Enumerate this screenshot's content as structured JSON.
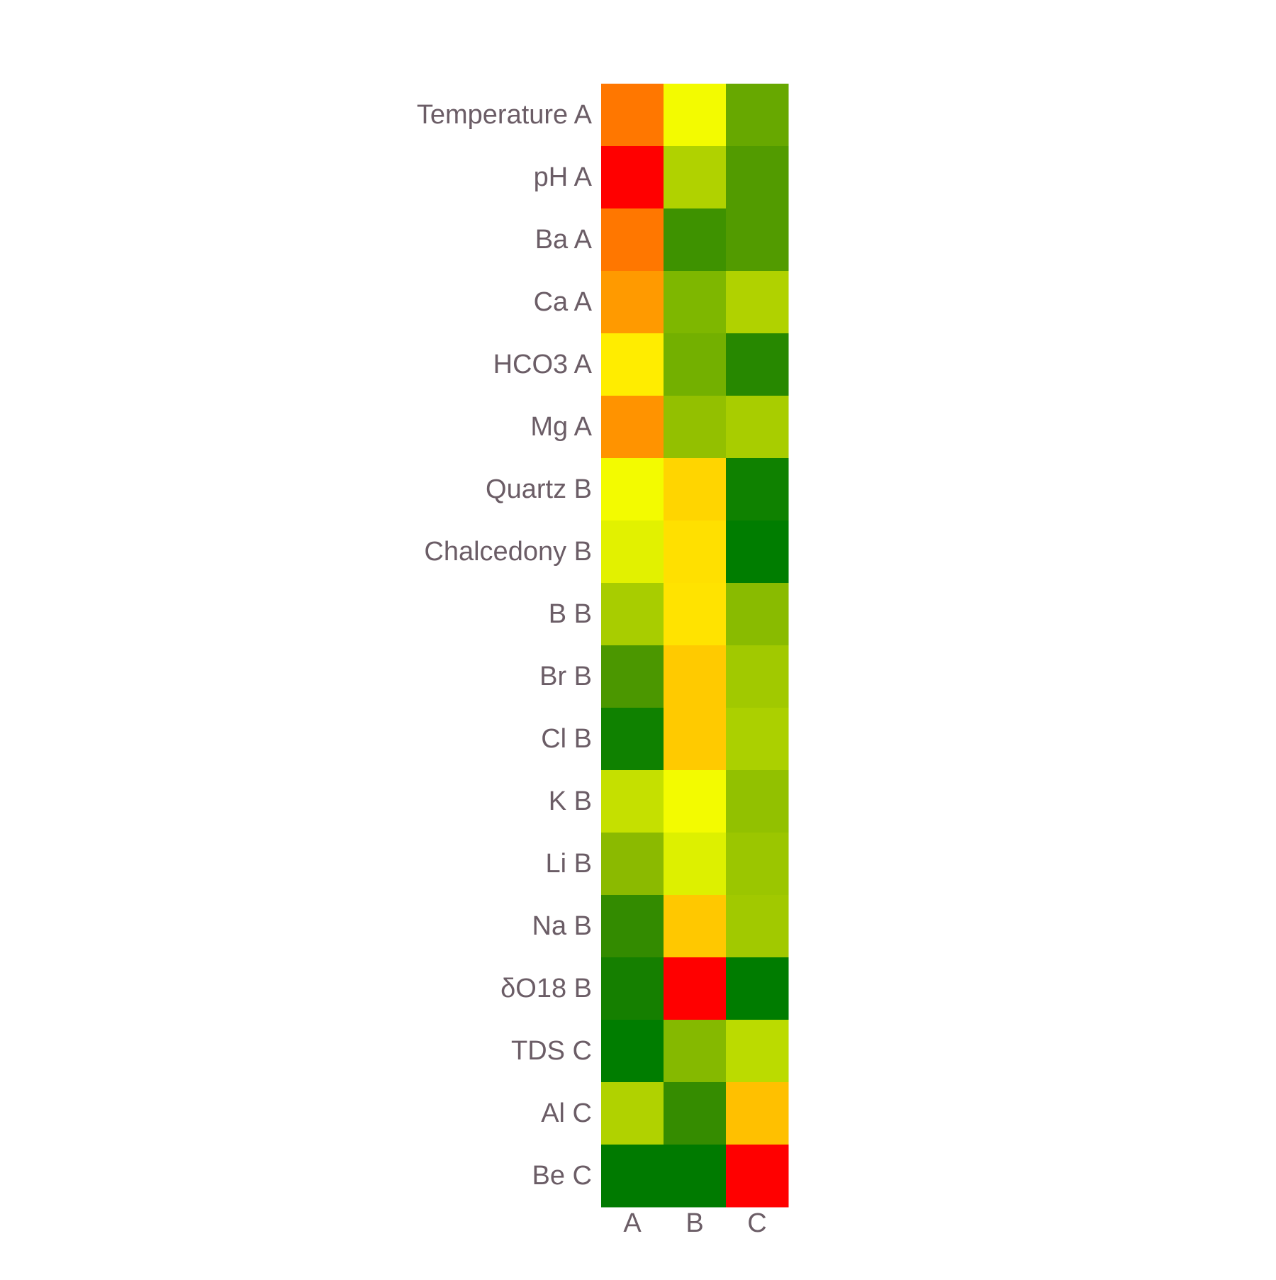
{
  "chart_data": {
    "type": "heatmap",
    "title": "",
    "xlabel": "",
    "ylabel": "",
    "x": [
      "A",
      "B",
      "C"
    ],
    "y": [
      "Temperature A",
      "pH A",
      "Ba A",
      "Ca A",
      "HCO3 A",
      "Mg A",
      "Quartz B",
      "Chalcedony B",
      "B B",
      "Br B",
      "Cl B",
      "K B",
      "Li B",
      "Na B",
      "δO18 B",
      "TDS C",
      "Al C",
      "Be C"
    ],
    "colors": [
      [
        "#ff7700",
        "#f3fb00",
        "#67a800"
      ],
      [
        "#ff0000",
        "#b0d200",
        "#529b00"
      ],
      [
        "#ff7700",
        "#3e9200",
        "#529b00"
      ],
      [
        "#ff9a00",
        "#7eb700",
        "#b0d200"
      ],
      [
        "#ffed00",
        "#73b000",
        "#278800"
      ],
      [
        "#ff9300",
        "#93c000",
        "#a8cd00"
      ],
      [
        "#f3fb00",
        "#ffd500",
        "#0f8100"
      ],
      [
        "#e2f100",
        "#ffe000",
        "#007d00"
      ],
      [
        "#a8cd00",
        "#ffe300",
        "#89bb00"
      ],
      [
        "#4b9700",
        "#ffca00",
        "#a1c900"
      ],
      [
        "#0f8100",
        "#ffca00",
        "#abd000"
      ],
      [
        "#c5e000",
        "#f3fb00",
        "#92c100"
      ],
      [
        "#8bba00",
        "#ddf000",
        "#9bc600"
      ],
      [
        "#338b00",
        "#ffc800",
        "#a1c900"
      ],
      [
        "#157f00",
        "#ff0000",
        "#007c00"
      ],
      [
        "#007d00",
        "#85b900",
        "#bbdb00"
      ],
      [
        "#b0d200",
        "#358c00",
        "#ffc000"
      ],
      [
        "#007a00",
        "#007a00",
        "#ff0000"
      ]
    ]
  }
}
